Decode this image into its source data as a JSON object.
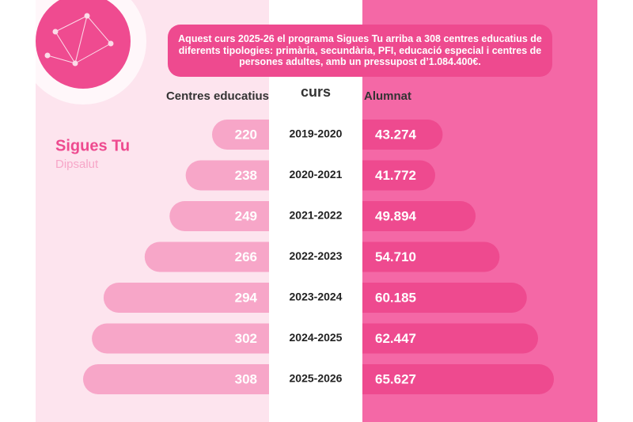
{
  "chart_data": {
    "type": "butterfly",
    "title": "Aquest curs 2025-26 el programa Sigues Tu arriba a 308 centres educatius de diferents tipologies: primària, secundària, PFI, educació especial i centres de persones adultes, amb un pressupost d’1.084.400€.",
    "annotations": [
      "Sigues Tu",
      "Dipsalut"
    ],
    "category_axis_label": "curs",
    "categories": [
      "2019-2020",
      "2020-2021",
      "2021-2022",
      "2022-2023",
      "2023-2024",
      "2024-2025",
      "2025-2026"
    ],
    "series": [
      {
        "name": "Centres educatius",
        "color": "#f7a6c8",
        "values": [
          220,
          238,
          249,
          266,
          294,
          302,
          308
        ]
      },
      {
        "name": "Alumnat",
        "color": "#ee4a8f",
        "values": [
          43274,
          41772,
          49894,
          54710,
          60185,
          62447,
          65627
        ],
        "value_labels": [
          "43.274",
          "41.772",
          "49.894",
          "54.710",
          "60.185",
          "62.447",
          "65.627"
        ]
      }
    ]
  }
}
